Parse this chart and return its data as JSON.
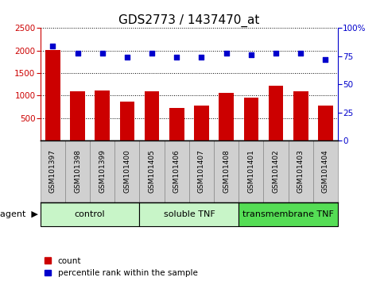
{
  "title": "GDS2773 / 1437470_at",
  "samples": [
    "GSM101397",
    "GSM101398",
    "GSM101399",
    "GSM101400",
    "GSM101405",
    "GSM101406",
    "GSM101407",
    "GSM101408",
    "GSM101401",
    "GSM101402",
    "GSM101403",
    "GSM101404"
  ],
  "counts": [
    2020,
    1100,
    1120,
    860,
    1100,
    730,
    780,
    1060,
    950,
    1220,
    1100,
    780
  ],
  "percentiles": [
    84,
    78,
    78,
    74,
    78,
    74,
    74,
    78,
    76,
    78,
    78,
    72
  ],
  "groups": [
    {
      "label": "control",
      "start": 0,
      "end": 4,
      "color": "#c8f5c8"
    },
    {
      "label": "soluble TNF",
      "start": 4,
      "end": 8,
      "color": "#c8f5c8"
    },
    {
      "label": "transmembrane TNF",
      "start": 8,
      "end": 12,
      "color": "#55dd55"
    }
  ],
  "ylim_left": [
    0,
    2500
  ],
  "ylim_right": [
    0,
    100
  ],
  "yticks_left": [
    500,
    1000,
    1500,
    2000,
    2500
  ],
  "yticks_right": [
    0,
    25,
    50,
    75,
    100
  ],
  "bar_color": "#cc0000",
  "dot_color": "#0000cc",
  "grid_color": "#000000",
  "title_fontsize": 11,
  "tick_fontsize": 7.5,
  "bar_width": 0.6,
  "sample_box_color": "#d0d0d0",
  "sample_box_border": "#888888"
}
